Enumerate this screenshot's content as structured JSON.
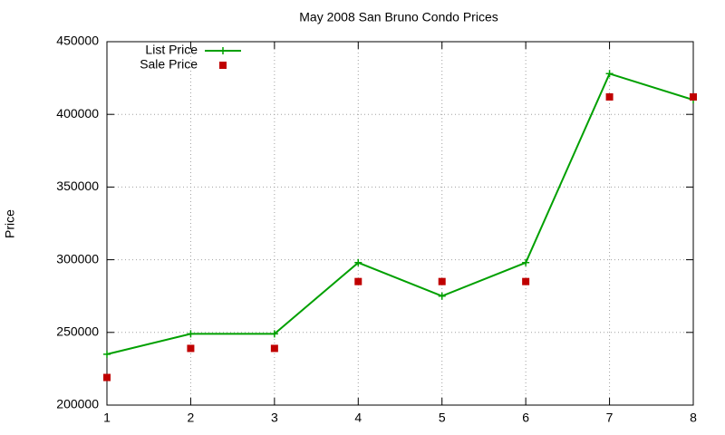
{
  "chart_data": {
    "type": "line",
    "title": "May 2008 San Bruno Condo Prices",
    "y_label": "Price",
    "x": [
      1,
      2,
      3,
      4,
      5,
      6,
      7,
      8
    ],
    "series": [
      {
        "name": "List Price",
        "color": "#00a000",
        "style": "linespoints",
        "values": [
          235000,
          249000,
          249000,
          298000,
          275000,
          298000,
          428000,
          410000
        ]
      },
      {
        "name": "Sale Price",
        "color": "#c00000",
        "style": "points",
        "values": [
          219000,
          239000,
          239000,
          285000,
          285000,
          285000,
          412000,
          412000
        ]
      }
    ],
    "xlim": [
      1,
      8
    ],
    "xticks": [
      1,
      2,
      3,
      4,
      5,
      6,
      7,
      8
    ],
    "ylim": [
      200000,
      450000
    ],
    "yticks": [
      200000,
      250000,
      300000,
      350000,
      400000,
      450000
    ],
    "grid": true,
    "legend": "top-left"
  }
}
